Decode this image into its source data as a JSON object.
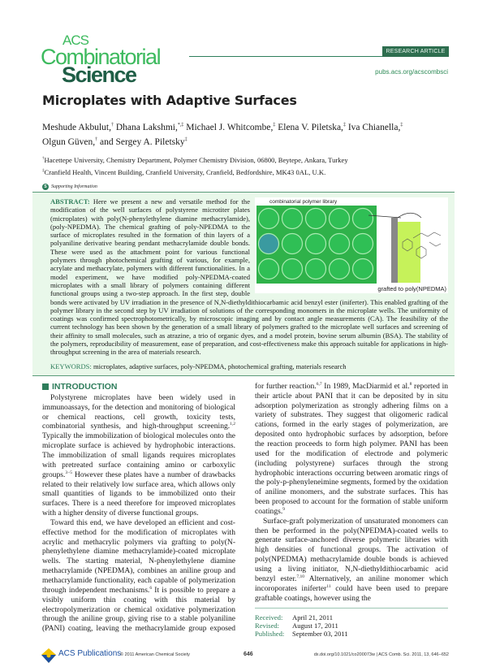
{
  "journal": {
    "logo_line1": "ACS",
    "logo_line2": "Combinatorial",
    "logo_line3": "Science",
    "badge": "RESEARCH ARTICLE",
    "url": "pubs.acs.org/acscombsci",
    "brand_color": "#2e7d5b",
    "logo_light": "#3dba5e",
    "logo_dark": "#1f5e46"
  },
  "article": {
    "title": "Microplates with Adaptive Surfaces",
    "authors": [
      {
        "name": "Meshude Akbulut,",
        "mark": "†"
      },
      {
        "name": " Dhana Lakshmi,",
        "mark": "*,‡"
      },
      {
        "name": " Michael J. Whitcombe,",
        "mark": "‡"
      },
      {
        "name": " Elena V. Piletska,",
        "mark": "‡"
      },
      {
        "name": " Iva Chianella,",
        "mark": "‡"
      },
      {
        "name": " Olgun Güven,",
        "mark": "†"
      },
      {
        "name": " and Sergey A. Piletsky",
        "mark": "‡"
      }
    ],
    "affiliations": [
      {
        "mark": "†",
        "text": "Hacettepe University, Chemistry Department, Polymer Chemistry Division, 06800, Beytepe, Ankara, Turkey"
      },
      {
        "mark": "‡",
        "text": "Cranfield Health, Vincent Building, Cranfield University, Cranfield, Bedfordshire, MK43 0AL, U.K."
      }
    ],
    "supporting_info": "Supporting Information",
    "supporting_icon": "S"
  },
  "abstract": {
    "label": "ABSTRACT:",
    "text": " Here we present a new and versatile method for the modification of the well surfaces of polystyrene microtiter plates (microplates) with poly(N-phenylethylene diamine methacrylamide), (poly-NPEDMA). The chemical grafting of poly-NPEDMA to the surface of microplates resulted in the formation of thin layers of a polyaniline derivative bearing pendant methacrylamide double bonds. These were used as the attachment point for various functional polymers through photochemical grafting of various, for example, acrylate and methacrylate, polymers with different functionalities. In a model experiment, we have modified poly-NPEDMA-coated microplates with a small library of polymers containing different functional groups using a two-step approach. In the first step, double bonds were activated by UV irradiation in the presence of N,N-diethyldithiocarbamic acid benzyl ester (iniferter). This enabled grafting of the polymer library in the second step by UV irradiation of solutions of the corresponding monomers in the microplate wells. The uniformity of coatings was confirmed spectrophotometrically, by microscopic imaging and by contact angle measurements (CA). The feasibility of the current technology has been shown by the generation of a small library of polymers grafted to the microplate well surfaces and screening of their affinity to small molecules, such as atrazine, a trio of organic dyes, and a model protein, bovine serum albumin (BSA). The stability of the polymers, reproducibility of measurement, ease of preparation, and cost-effectiveness make this approach suitable for applications in high-throughput screening in the area of materials research.",
    "graphic": {
      "top_label": "combinatorial polymer library",
      "bottom_label": "grafted to poly(NPEDMA)"
    },
    "keywords_label": "KEYWORDS:",
    "keywords": " microplates, adaptive surfaces, poly-NPEDMA, photochemical grafting, materials research"
  },
  "introduction": {
    "heading": "INTRODUCTION",
    "paragraphs": [
      [
        {
          "t": "Polystyrene microplates have been widely used in immunoassays, for the detection and monitoring of biological or chemical reactions, cell growth, toxicity tests, combinatorial synthesis, and high-throughput screening."
        },
        {
          "s": "1,2"
        },
        {
          "t": " Typically the immobilization of biological molecules onto the microplate surface is achieved by hydrophobic interactions. The immobilization of small ligands requires microplates with pretreated surface containing amino or carboxylic groups."
        },
        {
          "s": "3−5"
        },
        {
          "t": " However these plates have a number of drawbacks related to their relatively low surface area, which allows only small quantities of ligands to be immobilized onto their surfaces. There is a need therefore for improved microplates with a higher density of diverse functional groups."
        }
      ],
      [
        {
          "t": "Toward this end, we have developed an efficient and cost-effective method for the modification of microplates with acrylic and methacrylic polymers via grafting to poly(N-phenylethylene diamine methacrylamide)-coated microplate wells. The starting material, N-phenylethylene diamine methacrylamide (NPEDMA), combines an aniline group and methacrylamide functionality, each capable of polymerization through independent mechanisms."
        },
        {
          "s": "6"
        },
        {
          "t": " It is possible to prepare a visibly uniform thin coating with this material by electropolymerization or chemical oxidative polymerization through the aniline group, giving rise to a stable polyaniline (PANI) coating, leaving the methacrylamide group exposed for further reaction."
        },
        {
          "s": "6,7"
        },
        {
          "t": " In 1989, MacDiarmid et al."
        },
        {
          "s": "8"
        },
        {
          "t": " reported in their article about PANI that it can be deposited by in situ adsorption polymerization as strongly adhering films on a variety of substrates. They suggest that oligomeric radical cations, formed in the early stages of polymerization, are deposited onto hydrophobic surfaces by adsorption, before the reaction proceeds to form high polymer. PANI has been used for the modification of electrode and polymeric (including polystyrene) surfaces through the strong hydrophobic interactions occurring between aromatic rings of the poly-p-phenyleneimine segments, formed by the oxidation of aniline monomers, and the substrate surfaces. This has been proposed to account for the formation of stable uniform coatings."
        },
        {
          "s": "9"
        }
      ],
      [
        {
          "t": "Surface-graft polymerization of unsaturated monomers can then be performed in the poly(NPEDMA)-coated wells to generate surface-anchored diverse polymeric libraries with high densities of functional groups. The activation of poly(NPEDMA) methacrylamide double bonds is achieved using a living initiator, N,N-diethyldithiocarbamic acid benzyl ester."
        },
        {
          "s": "7,10"
        },
        {
          "t": " Alternatively, an aniline monomer which incoroporates iniferter"
        },
        {
          "s": "11"
        },
        {
          "t": " could have been used to prepare graftable coatings, however using the"
        }
      ]
    ]
  },
  "dates": [
    {
      "k": "Received:",
      "v": "April 21, 2011"
    },
    {
      "k": "Revised:",
      "v": "August 17, 2011"
    },
    {
      "k": "Published:",
      "v": "September 03, 2011"
    }
  ],
  "footer": {
    "publisher": "ACS Publications",
    "copyright": "© 2011 American Chemical Society",
    "page": "646",
    "citation": "dx.doi.org/10.1021/co200073w | ACS Comb. Sci. 2011, 13, 646−652"
  }
}
